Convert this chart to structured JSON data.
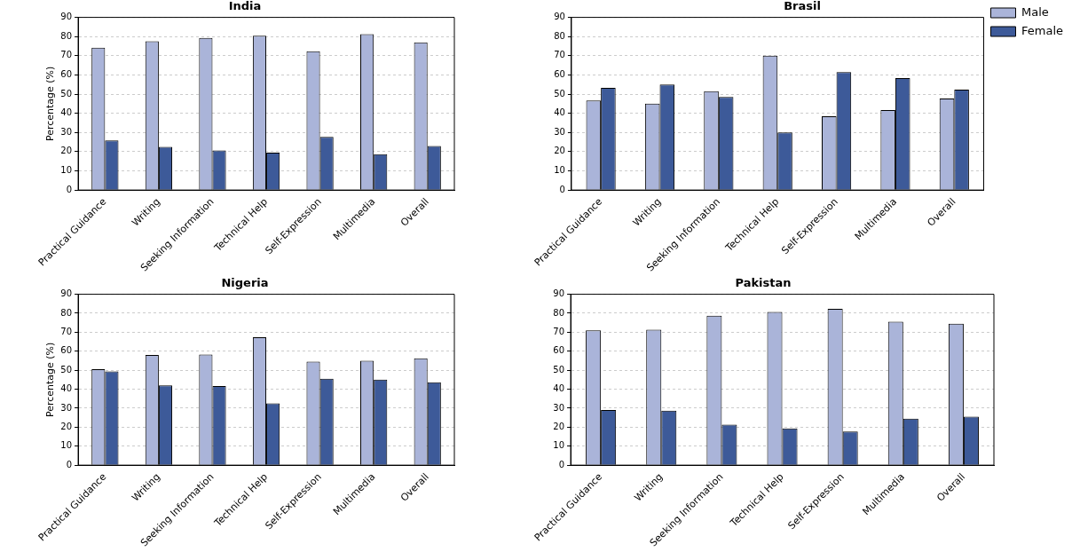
{
  "chart_data": [
    {
      "type": "bar",
      "title": "India",
      "ylabel": "Percentage (%)",
      "categories": [
        "Practical Guidance",
        "Writing",
        "Seeking Information",
        "Technical Help",
        "Self-Expression",
        "Multimedia",
        "Overall"
      ],
      "series": [
        {
          "color": "#aab4d9",
          "values": [
            74.2,
            77.5,
            79.3,
            80.5,
            72.3,
            81.3,
            77.0
          ]
        },
        {
          "color": "#3d5a99",
          "values": [
            25.8,
            22.5,
            20.7,
            19.5,
            27.7,
            18.7,
            23.0
          ]
        }
      ],
      "ylim": [
        0,
        90
      ],
      "yticks": [
        0,
        10,
        20,
        30,
        40,
        50,
        60,
        70,
        80,
        90
      ],
      "grid": "y",
      "legend": false
    },
    {
      "type": "bar",
      "title": "Brasil",
      "categories": [
        "Practical Guidance",
        "Writing",
        "Seeking Information",
        "Technical Help",
        "Self-Expression",
        "Multimedia",
        "Overall"
      ],
      "series": [
        {
          "name": "Male",
          "color": "#aab4d9",
          "values": [
            46.7,
            45.0,
            51.5,
            70.0,
            38.5,
            41.7,
            47.7
          ]
        },
        {
          "name": "Female",
          "color": "#3d5a99",
          "values": [
            53.3,
            55.0,
            48.5,
            30.0,
            61.5,
            58.3,
            52.3
          ]
        }
      ],
      "ylim": [
        0,
        90
      ],
      "yticks": [
        0,
        10,
        20,
        30,
        40,
        50,
        60,
        70,
        80,
        90
      ],
      "grid": "y",
      "legend": "top right"
    },
    {
      "type": "bar",
      "title": "Nigeria",
      "ylabel": "Percentage (%)",
      "categories": [
        "Practical Guidance",
        "Writing",
        "Seeking Information",
        "Technical Help",
        "Self-Expression",
        "Multimedia",
        "Overall"
      ],
      "series": [
        {
          "color": "#aab4d9",
          "values": [
            50.6,
            58.0,
            58.3,
            67.4,
            54.5,
            55.0,
            56.3
          ]
        },
        {
          "color": "#3d5a99",
          "values": [
            49.4,
            42.0,
            41.7,
            32.6,
            45.5,
            45.0,
            43.7
          ]
        }
      ],
      "ylim": [
        0,
        90
      ],
      "yticks": [
        0,
        10,
        20,
        30,
        40,
        50,
        60,
        70,
        80,
        90
      ],
      "grid": "y",
      "legend": false
    },
    {
      "type": "bar",
      "title": "Pakistan",
      "categories": [
        "Practical Guidance",
        "Writing",
        "Seeking Information",
        "Technical Help",
        "Self-Expression",
        "Multimedia",
        "Overall"
      ],
      "series": [
        {
          "color": "#aab4d9",
          "values": [
            71.0,
            71.3,
            78.7,
            80.7,
            82.3,
            75.5,
            74.5
          ]
        },
        {
          "color": "#3d5a99",
          "values": [
            29.0,
            28.7,
            21.3,
            19.3,
            17.7,
            24.5,
            25.5
          ]
        }
      ],
      "ylim": [
        0,
        90
      ],
      "yticks": [
        0,
        10,
        20,
        30,
        40,
        50,
        60,
        70,
        80,
        90
      ],
      "grid": "y",
      "legend": false
    }
  ]
}
